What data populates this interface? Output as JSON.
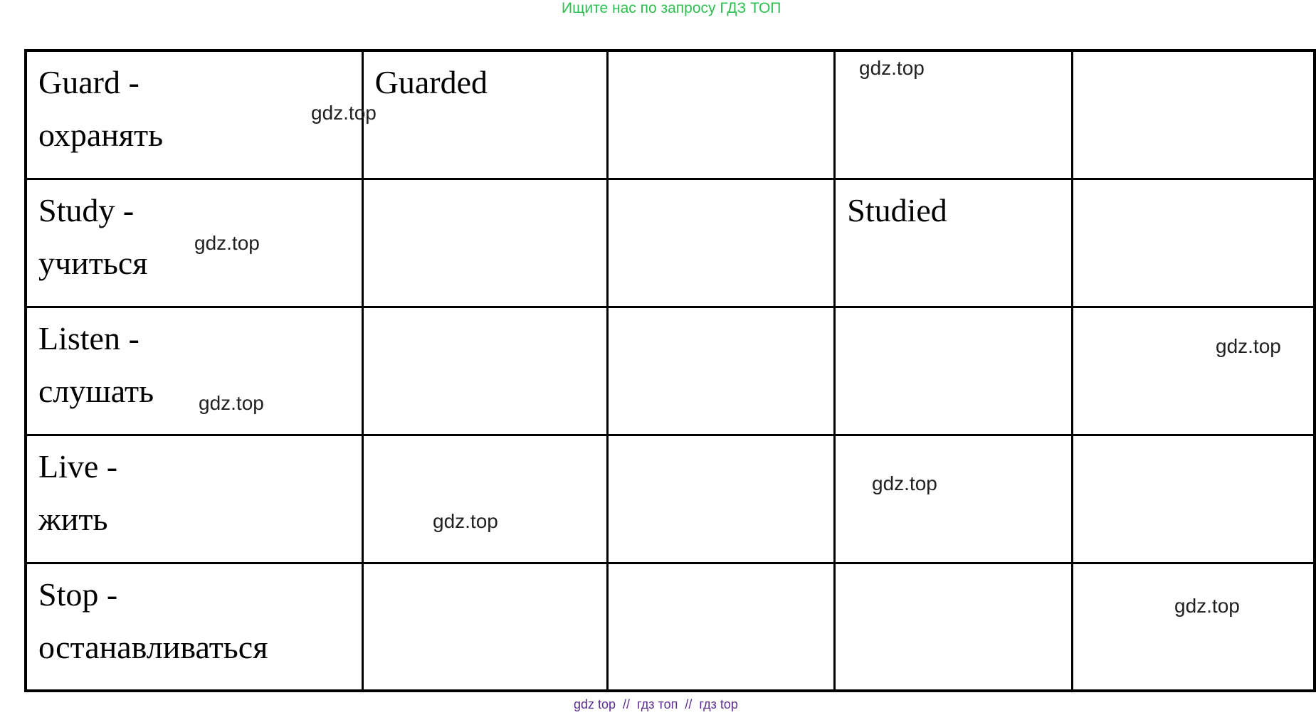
{
  "page": {
    "header_text": "Ищите нас по запросу ГДЗ ТОП",
    "footer_text": "gdz top  //  гдз топ  //  гдз top",
    "watermark_text": "gdz.top",
    "colors": {
      "header_green": "#2dbe4f",
      "footer_purple": "#5b2d8e",
      "watermark_dark": "#212121",
      "table_border": "#000000",
      "background": "#ffffff"
    }
  },
  "table": {
    "columns": 5,
    "rows": [
      {
        "cells": [
          {
            "text": "Guard -\nохранять"
          },
          {
            "text": "Guarded"
          },
          {
            "text": ""
          },
          {
            "text": ""
          },
          {
            "text": ""
          }
        ]
      },
      {
        "cells": [
          {
            "text": "Study -\nучиться"
          },
          {
            "text": ""
          },
          {
            "text": ""
          },
          {
            "text": "Studied"
          },
          {
            "text": ""
          }
        ]
      },
      {
        "cells": [
          {
            "text": "Listen -\nслушать"
          },
          {
            "text": ""
          },
          {
            "text": ""
          },
          {
            "text": ""
          },
          {
            "text": ""
          }
        ]
      },
      {
        "cells": [
          {
            "text": "Live -\nжить"
          },
          {
            "text": ""
          },
          {
            "text": ""
          },
          {
            "text": ""
          },
          {
            "text": ""
          }
        ]
      },
      {
        "cells": [
          {
            "text": "Stop -\nостанавливаться"
          },
          {
            "text": ""
          },
          {
            "text": ""
          },
          {
            "text": ""
          },
          {
            "text": ""
          }
        ]
      }
    ]
  }
}
